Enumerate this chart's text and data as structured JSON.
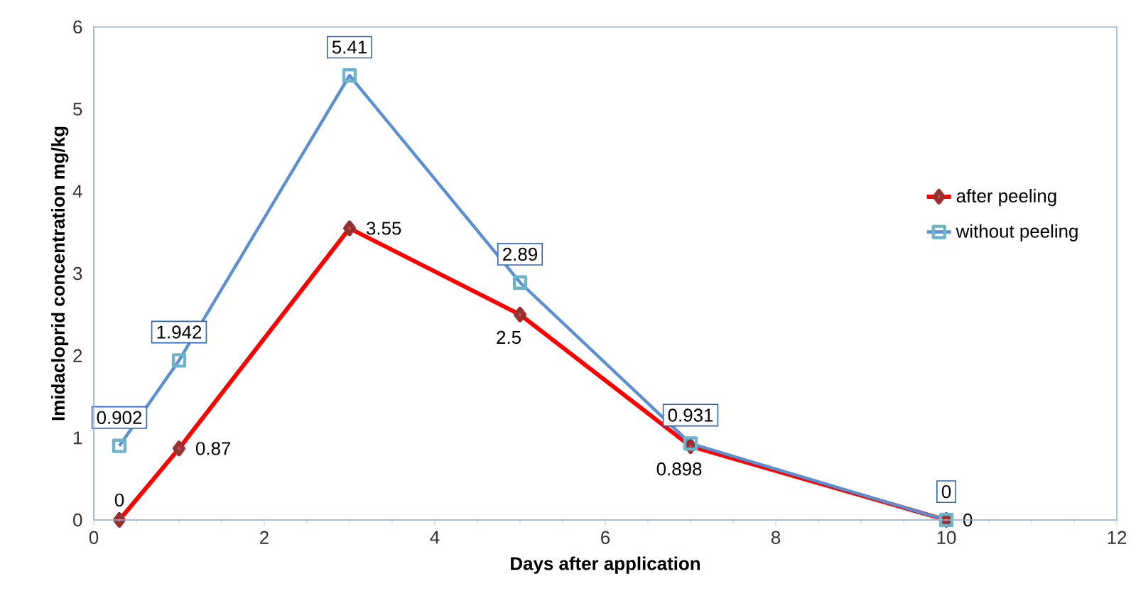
{
  "chart_data": {
    "type": "line",
    "xlabel": "Days after application",
    "ylabel": "Imidacloprid concentration mg/kg",
    "x": [
      0.3,
      1,
      3,
      5,
      7,
      10
    ],
    "series": [
      {
        "name": "after peeling",
        "color": "#ff0000",
        "marker": "diamond",
        "values": [
          0,
          0.87,
          3.55,
          2.5,
          0.898,
          0
        ]
      },
      {
        "name": "without peeling",
        "color": "#5b8fd0",
        "marker": "square",
        "values": [
          0.902,
          1.942,
          5.41,
          2.89,
          0.931,
          0
        ]
      }
    ],
    "xlim": [
      0,
      12
    ],
    "xticks": [
      0,
      2,
      4,
      6,
      8,
      10,
      12
    ],
    "ylim": [
      0,
      6
    ],
    "yticks": [
      0,
      1,
      2,
      3,
      4,
      5,
      6
    ],
    "grid": false,
    "legend": "right",
    "data_labels": true
  }
}
